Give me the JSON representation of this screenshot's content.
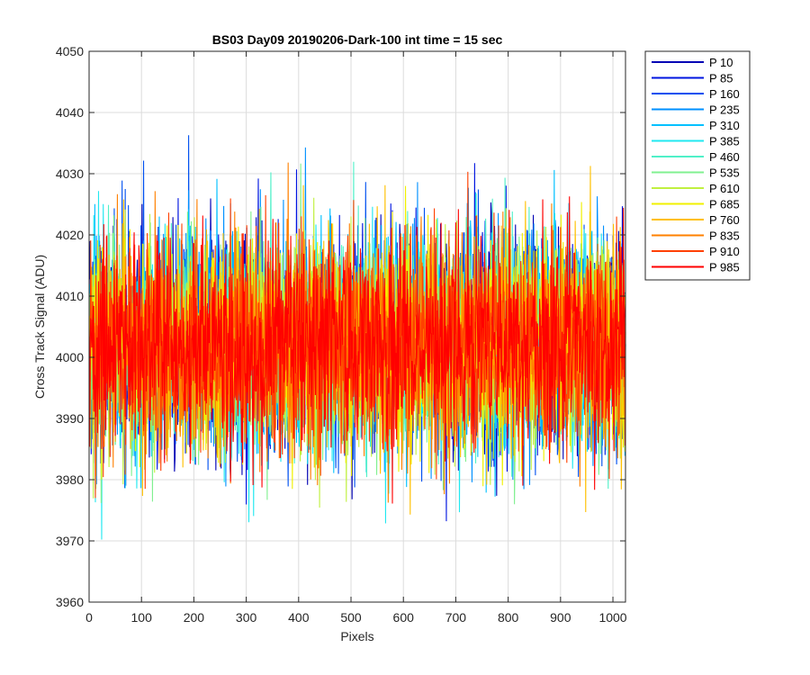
{
  "chart_data": {
    "type": "line",
    "title": "BS03 Day09 20190206-Dark-100 int time = 15 sec",
    "xlabel": "Pixels",
    "ylabel": "Cross Track Signal (ADU)",
    "xlim": [
      0,
      1024
    ],
    "ylim": [
      3960,
      4050
    ],
    "xticks": [
      0,
      100,
      200,
      300,
      400,
      500,
      600,
      700,
      800,
      900,
      1000
    ],
    "yticks": [
      3960,
      3970,
      3980,
      3990,
      4000,
      4010,
      4020,
      4030,
      4040,
      4050
    ],
    "grid": true,
    "legend_position": "outside-top-right",
    "n_points": 1024,
    "series": [
      {
        "name": "P 10",
        "color": "#0000b4",
        "mean": 4003,
        "sd": 8.5
      },
      {
        "name": "P 85",
        "color": "#0014e0",
        "mean": 4002,
        "sd": 8.5
      },
      {
        "name": "P 160",
        "color": "#0050f0",
        "mean": 4002,
        "sd": 8.5
      },
      {
        "name": "P 235",
        "color": "#0090ff",
        "mean": 4002,
        "sd": 8.5
      },
      {
        "name": "P 310",
        "color": "#00c0ff",
        "mean": 4002,
        "sd": 8.5
      },
      {
        "name": "P 385",
        "color": "#20e8f0",
        "mean": 4002,
        "sd": 8.5
      },
      {
        "name": "P 460",
        "color": "#50f0c8",
        "mean": 4002,
        "sd": 8.5
      },
      {
        "name": "P 535",
        "color": "#80f090",
        "mean": 4002,
        "sd": 8.5
      },
      {
        "name": "P 610",
        "color": "#c0f040",
        "mean": 4002,
        "sd": 8.5
      },
      {
        "name": "P 685",
        "color": "#f0f000",
        "mean": 4002,
        "sd": 8.5
      },
      {
        "name": "P 760",
        "color": "#ffc000",
        "mean": 4002,
        "sd": 8.5
      },
      {
        "name": "P 835",
        "color": "#ff8000",
        "mean": 4002,
        "sd": 8.5
      },
      {
        "name": "P 910",
        "color": "#ff4000",
        "mean": 4002,
        "sd": 8.5
      },
      {
        "name": "P 985",
        "color": "#ff0000",
        "mean": 4002,
        "sd": 8.5
      }
    ]
  }
}
